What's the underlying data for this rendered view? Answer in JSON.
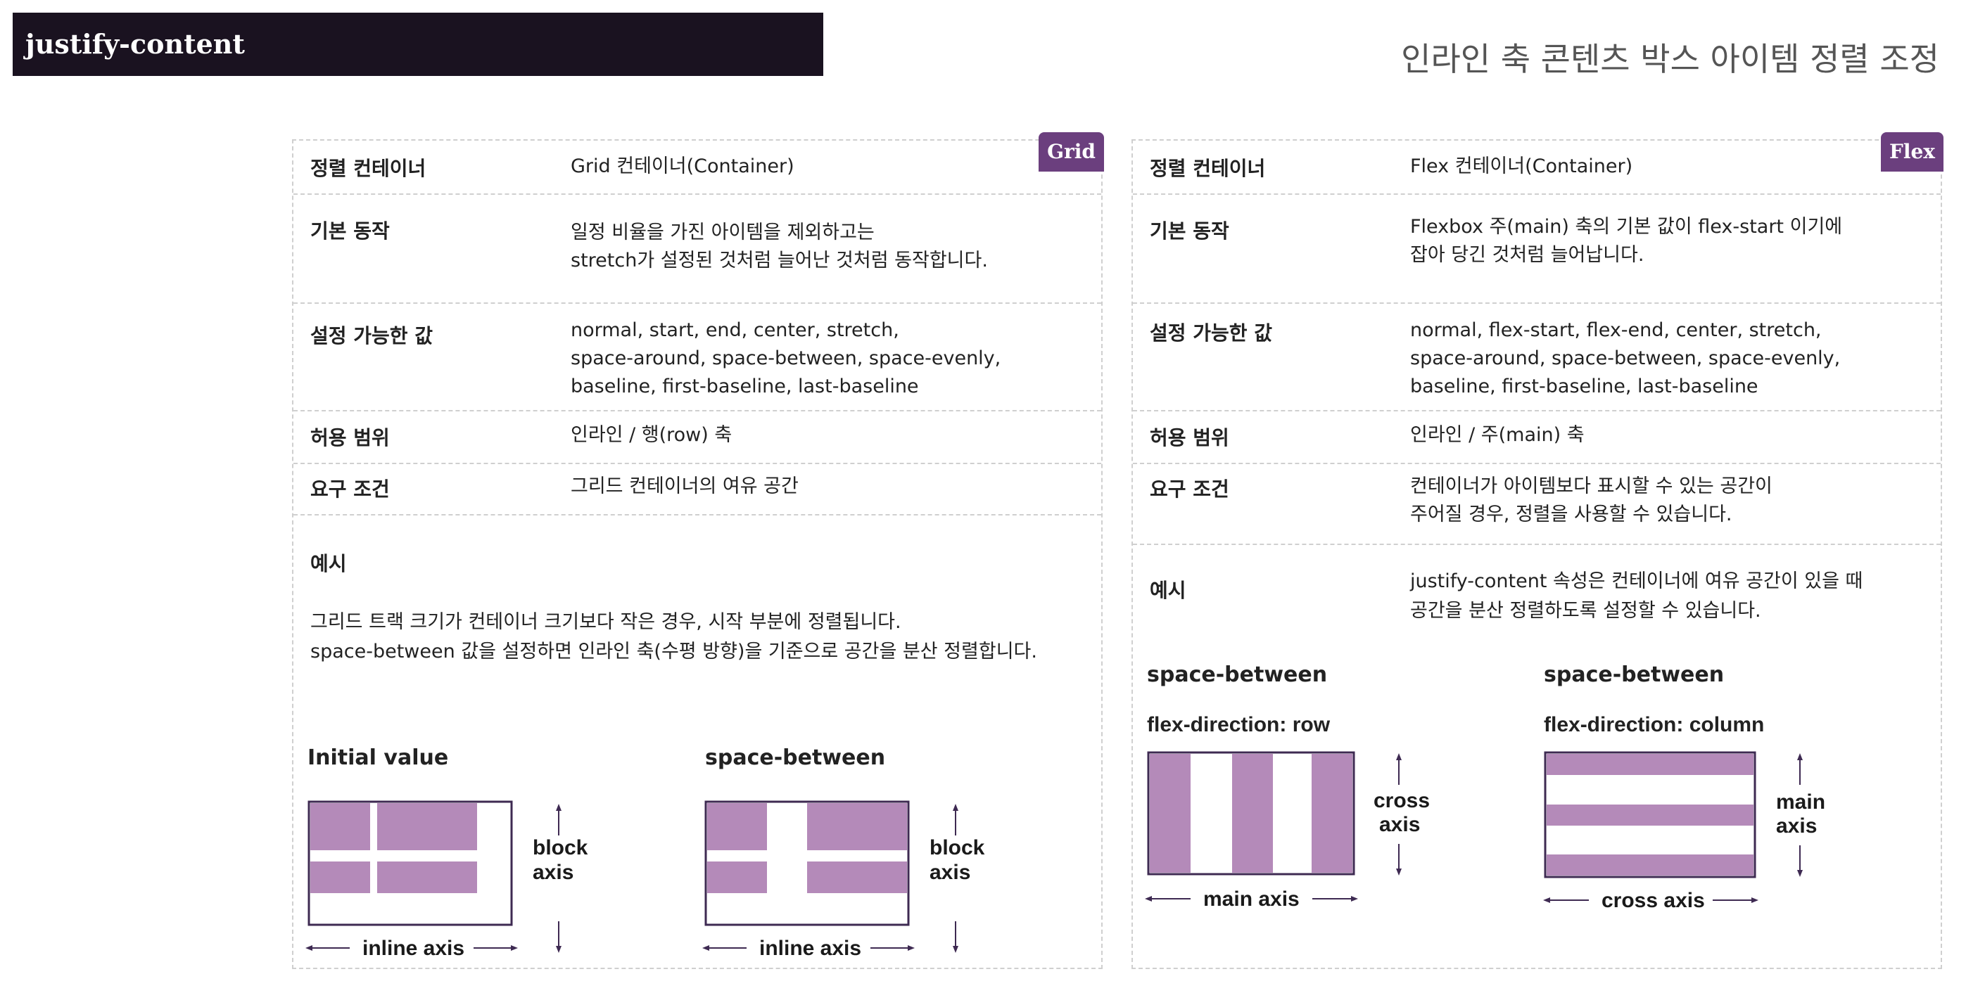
{
  "header": {
    "title": "justify-content",
    "subtitle": "인라인 축 콘텐츠 박스 아이템 정렬 조정"
  },
  "grid": {
    "badge": "Grid",
    "rows": [
      {
        "key": "정렬 컨테이너",
        "lines": [
          "Grid 컨테이너(Container)"
        ]
      },
      {
        "key": "기본 동작",
        "lines": [
          "일정 비율을 가진 아이템을 제외하고는",
          "stretch가 설정된 것처럼 늘어난 것처럼 동작합니다."
        ]
      },
      {
        "key": "설정 가능한 값",
        "lines": [
          "normal, start, end, center, stretch,",
          "space-around, space-between, space-evenly,",
          "baseline, first-baseline, last-baseline"
        ]
      },
      {
        "key": "허용 범위",
        "lines": [
          "인라인 / 행(row) 축"
        ]
      },
      {
        "key": "요구 조건",
        "lines": [
          "그리드 컨테이너의 여유 공간"
        ]
      }
    ],
    "example_key": "예시",
    "example_lines": [
      "그리드 트랙 크기가 컨테이너 크기보다 작은 경우, 시작 부분에 정렬됩니다.",
      "space-between 값을 설정하면 인라인 축(수평 방향)을 기준으로 공간을 분산 정렬합니다."
    ],
    "diagram1_label": "Initial value",
    "diagram2_label": "space-between",
    "block_axis_1": "block",
    "block_axis_2": "axis",
    "inline_axis": "inline axis"
  },
  "flex": {
    "badge": "Flex",
    "rows": [
      {
        "key": "정렬 컨테이너",
        "lines": [
          "Flex 컨테이너(Container)"
        ]
      },
      {
        "key": "기본 동작",
        "lines": [
          "Flexbox 주(main) 축의 기본 값이 flex-start 이기에",
          "잡아 당긴 것처럼 늘어납니다."
        ]
      },
      {
        "key": "설정 가능한 값",
        "lines": [
          "normal, flex-start, flex-end, center, stretch,",
          "space-around, space-between, space-evenly,",
          "baseline, first-baseline, last-baseline"
        ]
      },
      {
        "key": "허용 범위",
        "lines": [
          "인라인 / 주(main) 축"
        ]
      },
      {
        "key": "요구 조건",
        "lines": [
          "컨테이너가 아이템보다 표시할 수 있는 공간이",
          "주어질 경우, 정렬을 사용할 수 있습니다."
        ]
      }
    ],
    "example_key": "예시",
    "example_lines": [
      "justify-content 속성은 컨테이너에 여유 공간이 있을 때",
      "공간을 분산 정렬하도록 설정할 수 있습니다."
    ],
    "diagram1_value": "space-between",
    "diagram1_direction": "flex-direction: row",
    "diagram2_value": "space-between",
    "diagram2_direction": "flex-direction: column",
    "cross_axis_1": "cross",
    "cross_axis_2": "axis",
    "main_axis_1": "main",
    "main_axis_2": "axis",
    "main_axis": "main axis",
    "cross_axis": "cross axis"
  },
  "colors": {
    "item": "#b48ab9",
    "border": "#3e2a52",
    "badge": "#6b3f7e"
  }
}
